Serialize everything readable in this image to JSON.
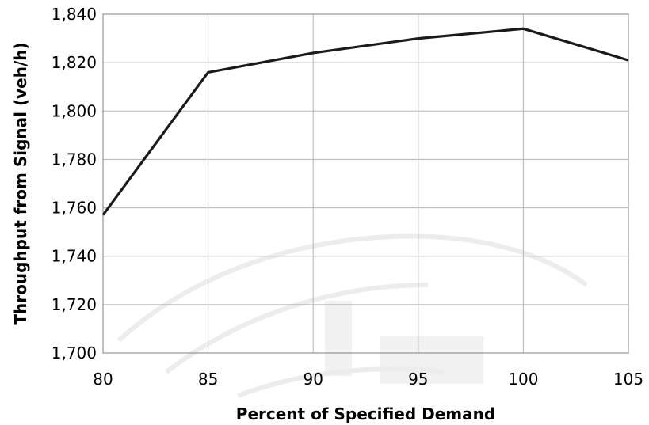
{
  "chart_data": {
    "type": "line",
    "title": "",
    "xlabel": "Percent of Specified Demand",
    "ylabel": "Throughput from Signal (veh/h)",
    "x": [
      80,
      85,
      90,
      95,
      100,
      105
    ],
    "series": [
      {
        "values": [
          1757,
          1816,
          1824,
          1830,
          1834,
          1821
        ]
      }
    ],
    "xlim": [
      80,
      105
    ],
    "ylim": [
      1700,
      1840
    ],
    "xticks": [
      "80",
      "85",
      "90",
      "95",
      "100",
      "105"
    ],
    "yticks": [
      "1,700",
      "1,720",
      "1,740",
      "1,760",
      "1,780",
      "1,800",
      "1,820",
      "1,840"
    ],
    "grid": true,
    "legend": "none",
    "colors": {
      "line": "#1a1a1a",
      "grid": "#b3b3b3",
      "background": "#ffffff"
    }
  }
}
